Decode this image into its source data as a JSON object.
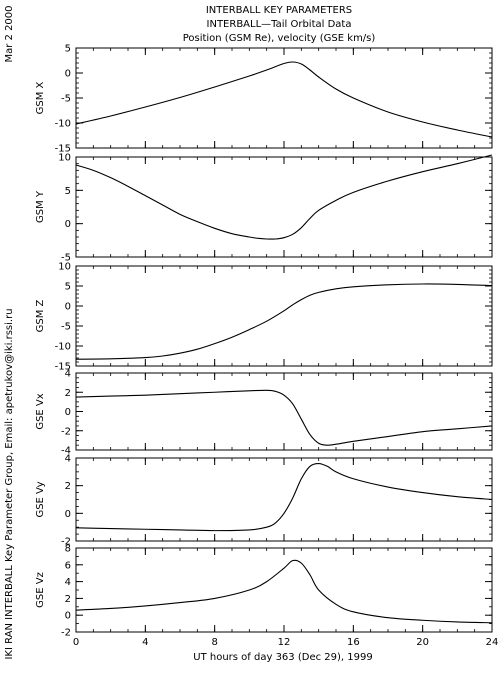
{
  "header": {
    "title_line1": "INTERBALL KEY PARAMETERS",
    "title_line2": "INTERBALL—Tail Orbital Data",
    "title_line3": "Position (GSM Re), velocity (GSE km/s)",
    "date_stamp": "Mar  2 2000",
    "side_credit": "IKI RAN INTERBALL Key Parameter Group, Email: apetrukov@iki.rssi.ru"
  },
  "x_axis": {
    "label": "UT hours of day 363 (Dec 29), 1999",
    "range": [
      0,
      24
    ],
    "ticks": [
      0,
      4,
      8,
      12,
      16,
      20,
      24
    ],
    "minor_step": 1
  },
  "chart_data": [
    {
      "type": "line",
      "ylabel": "GSM X",
      "ylim": [
        -15,
        5
      ],
      "yticks": [
        5,
        0,
        -5,
        -10,
        -15
      ],
      "minor_step": 1,
      "x": [
        0,
        2,
        4,
        6,
        8,
        10,
        11,
        12,
        12.5,
        13,
        13.5,
        14,
        15,
        16,
        18,
        20,
        22,
        24
      ],
      "values": [
        -10.2,
        -8.6,
        -6.8,
        -4.9,
        -2.8,
        -0.6,
        0.6,
        1.9,
        2.2,
        1.8,
        0.6,
        -0.8,
        -3.2,
        -5.0,
        -7.8,
        -9.8,
        -11.4,
        -12.8
      ]
    },
    {
      "type": "line",
      "ylabel": "GSM Y",
      "ylim": [
        -5,
        10
      ],
      "yticks": [
        10,
        5,
        0,
        -5
      ],
      "minor_step": 1,
      "x": [
        0,
        1,
        2,
        3,
        4,
        5,
        6,
        7,
        8,
        9,
        10,
        10.5,
        11,
        11.5,
        12,
        12.5,
        13,
        13.5,
        14,
        15,
        16,
        18,
        20,
        22,
        24
      ],
      "values": [
        8.8,
        8.0,
        6.9,
        5.6,
        4.2,
        2.8,
        1.4,
        0.3,
        -0.7,
        -1.5,
        -2.0,
        -2.2,
        -2.3,
        -2.3,
        -2.1,
        -1.6,
        -0.6,
        0.8,
        2.0,
        3.5,
        4.7,
        6.4,
        7.8,
        9.0,
        10.3
      ]
    },
    {
      "type": "line",
      "ylabel": "GSM Z",
      "ylim": [
        -15,
        10
      ],
      "yticks": [
        10,
        5,
        0,
        -5,
        -10,
        -15
      ],
      "minor_step": 1,
      "x": [
        0,
        2,
        4,
        5,
        6,
        7,
        8,
        9,
        10,
        11,
        12,
        12.5,
        13,
        13.5,
        14,
        15,
        16,
        18,
        20,
        22,
        24
      ],
      "values": [
        -13.3,
        -13.2,
        -12.9,
        -12.5,
        -11.8,
        -10.8,
        -9.4,
        -7.8,
        -5.9,
        -3.8,
        -1.2,
        0.3,
        1.6,
        2.7,
        3.4,
        4.3,
        4.8,
        5.3,
        5.5,
        5.4,
        5.1
      ]
    },
    {
      "type": "line",
      "ylabel": "GSE Vx",
      "ylim": [
        -4,
        4
      ],
      "yticks": [
        4,
        2,
        0,
        -2,
        -4
      ],
      "minor_step": 0.5,
      "x": [
        0,
        2,
        4,
        6,
        8,
        10,
        11,
        11.5,
        12,
        12.5,
        13,
        13.5,
        14,
        14.5,
        15,
        16,
        18,
        20,
        22,
        24
      ],
      "values": [
        1.5,
        1.6,
        1.7,
        1.85,
        2.0,
        2.15,
        2.2,
        2.1,
        1.7,
        0.8,
        -0.8,
        -2.4,
        -3.3,
        -3.5,
        -3.4,
        -3.1,
        -2.6,
        -2.1,
        -1.8,
        -1.5
      ]
    },
    {
      "type": "line",
      "ylabel": "GSE Vy",
      "ylim": [
        -2,
        4
      ],
      "yticks": [
        4,
        2,
        0,
        -2
      ],
      "minor_step": 0.5,
      "x": [
        0,
        2,
        4,
        6,
        8,
        10,
        11,
        11.5,
        12,
        12.5,
        13,
        13.5,
        14,
        14.5,
        15,
        16,
        18,
        20,
        22,
        24
      ],
      "values": [
        -1.05,
        -1.1,
        -1.15,
        -1.2,
        -1.25,
        -1.2,
        -1.0,
        -0.7,
        0.0,
        1.1,
        2.5,
        3.4,
        3.6,
        3.4,
        3.0,
        2.5,
        1.9,
        1.5,
        1.2,
        1.0
      ]
    },
    {
      "type": "line",
      "ylabel": "GSE Vz",
      "ylim": [
        -2,
        8
      ],
      "yticks": [
        8,
        6,
        4,
        2,
        0,
        -2
      ],
      "minor_step": 1,
      "x": [
        0,
        2,
        4,
        6,
        8,
        10,
        11,
        12,
        12.5,
        13,
        13.5,
        14,
        15,
        16,
        18,
        20,
        22,
        24
      ],
      "values": [
        0.6,
        0.8,
        1.1,
        1.5,
        2.0,
        3.0,
        4.0,
        5.6,
        6.5,
        6.2,
        4.8,
        3.0,
        1.3,
        0.4,
        -0.3,
        -0.6,
        -0.8,
        -0.9
      ]
    }
  ]
}
